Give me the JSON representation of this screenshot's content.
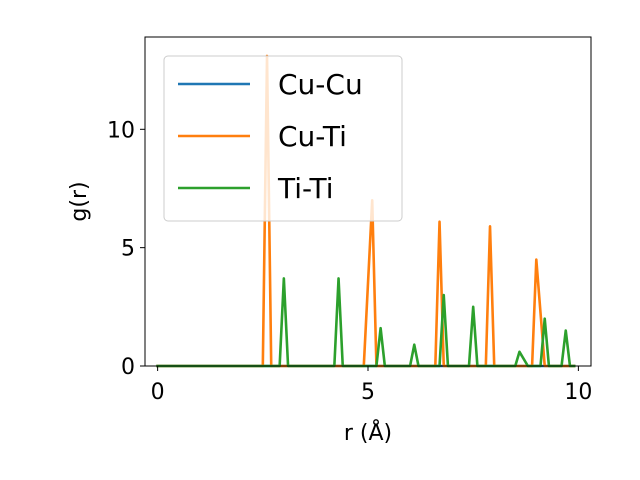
{
  "chart_data": {
    "type": "line",
    "xlabel": "r (Å)",
    "ylabel": "g(r)",
    "xlim": [
      -0.3,
      10.3
    ],
    "ylim": [
      0,
      13.9
    ],
    "x_ticks": [
      0,
      5,
      10
    ],
    "y_ticks": [
      0,
      5,
      10
    ],
    "grid": false,
    "legend_position": "upper left",
    "series": [
      {
        "name": "Cu-Cu",
        "color": "#1f77b4",
        "points": [
          [
            0,
            0
          ],
          [
            9.9,
            0
          ]
        ]
      },
      {
        "name": "Cu-Ti",
        "color": "#ff7f0e",
        "points": [
          [
            0,
            0
          ],
          [
            2.5,
            0
          ],
          [
            2.6,
            13.1
          ],
          [
            2.7,
            0
          ],
          [
            4.9,
            0
          ],
          [
            5.1,
            7.0
          ],
          [
            5.2,
            0
          ],
          [
            6.6,
            0
          ],
          [
            6.7,
            6.1
          ],
          [
            6.8,
            0
          ],
          [
            7.8,
            0
          ],
          [
            7.9,
            5.9
          ],
          [
            8.0,
            0
          ],
          [
            8.9,
            0
          ],
          [
            9.0,
            4.5
          ],
          [
            9.2,
            0
          ],
          [
            9.9,
            0
          ]
        ]
      },
      {
        "name": "Ti-Ti",
        "color": "#2ca02c",
        "points": [
          [
            0,
            0
          ],
          [
            2.9,
            0
          ],
          [
            3.0,
            3.7
          ],
          [
            3.1,
            0
          ],
          [
            4.2,
            0
          ],
          [
            4.3,
            3.7
          ],
          [
            4.4,
            0
          ],
          [
            5.2,
            0
          ],
          [
            5.3,
            1.6
          ],
          [
            5.4,
            0
          ],
          [
            6.0,
            0
          ],
          [
            6.1,
            0.9
          ],
          [
            6.2,
            0
          ],
          [
            6.7,
            0
          ],
          [
            6.8,
            3.0
          ],
          [
            6.9,
            0
          ],
          [
            7.4,
            0
          ],
          [
            7.5,
            2.5
          ],
          [
            7.6,
            0
          ],
          [
            8.5,
            0
          ],
          [
            8.6,
            0.6
          ],
          [
            8.8,
            0
          ],
          [
            9.1,
            0
          ],
          [
            9.2,
            2.0
          ],
          [
            9.3,
            0
          ],
          [
            9.6,
            0
          ],
          [
            9.7,
            1.5
          ],
          [
            9.8,
            0
          ],
          [
            9.9,
            0
          ]
        ]
      }
    ]
  }
}
